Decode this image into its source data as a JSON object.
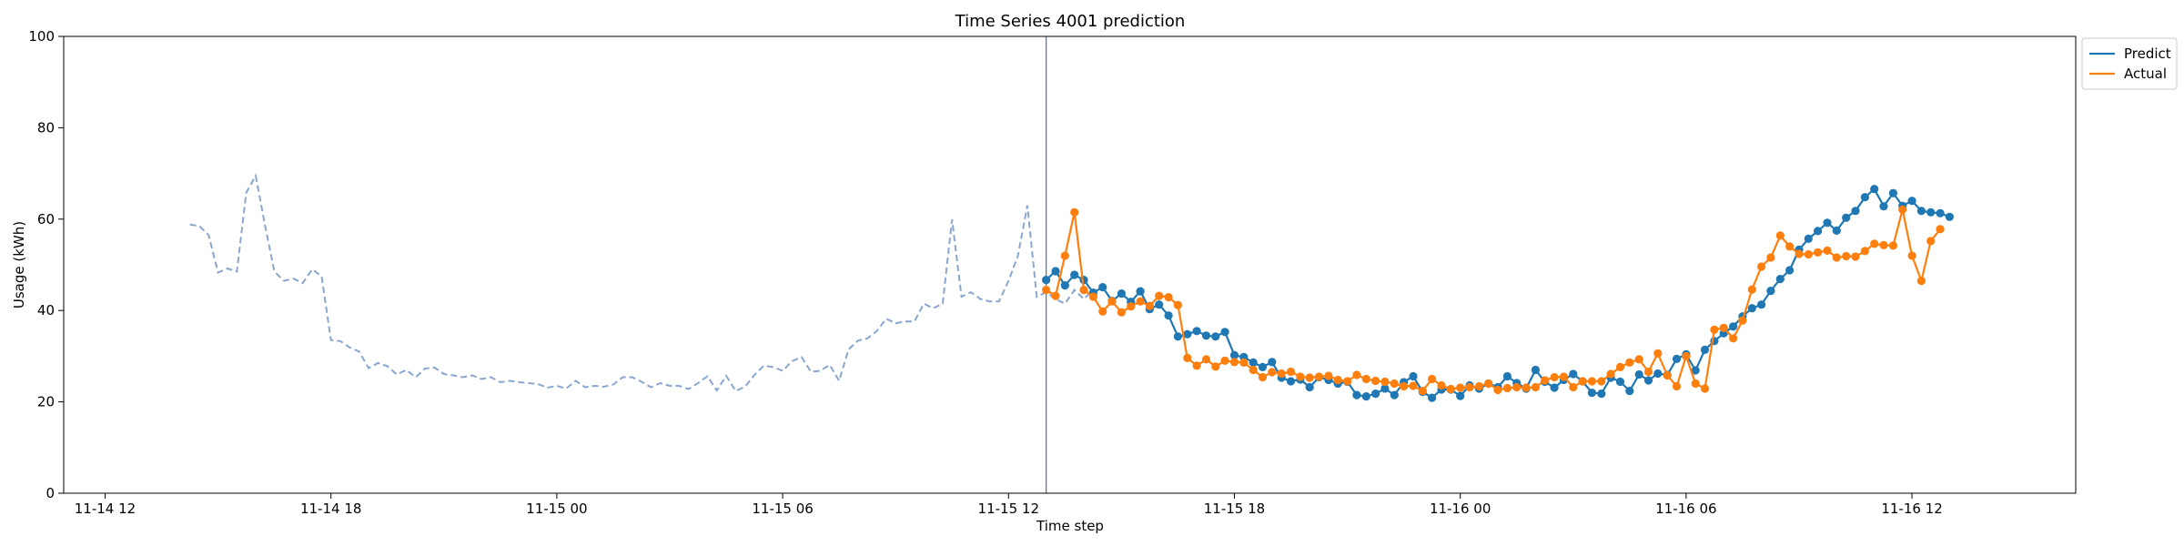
{
  "chart_data": {
    "type": "line",
    "title": "Time Series 4001 prediction",
    "xlabel": "Time step",
    "ylabel": "Usage (kWh)",
    "ylim": [
      0,
      100
    ],
    "yticks": [
      "0",
      "20",
      "40",
      "60",
      "80",
      "100"
    ],
    "xlim": [
      "11-14 10:54",
      "11-16 16:21"
    ],
    "xticks": [
      {
        "at": "11-14 12:00",
        "label": "11-14 12"
      },
      {
        "at": "11-14 18:00",
        "label": "11-14 18"
      },
      {
        "at": "11-15 00:00",
        "label": "11-15 00"
      },
      {
        "at": "11-15 06:00",
        "label": "11-15 06"
      },
      {
        "at": "11-15 12:00",
        "label": "11-15 12"
      },
      {
        "at": "11-15 18:00",
        "label": "11-15 18"
      },
      {
        "at": "11-16 00:00",
        "label": "11-16 00"
      },
      {
        "at": "11-16 06:00",
        "label": "11-16 06"
      },
      {
        "at": "11-16 12:00",
        "label": "11-16 12"
      }
    ],
    "grid": false,
    "legend_position": "outside-top-right",
    "vline": {
      "x": "11-15 13:00",
      "color": "#4c72b0"
    },
    "series": [
      {
        "name": "",
        "style": "dashed",
        "color": "#8aa6cf",
        "markers": false,
        "start": "11-14 14:15",
        "step_minutes": 15,
        "values": [
          58.8,
          58.5,
          56.5,
          48.3,
          49.2,
          48.5,
          65.8,
          69.5,
          58.5,
          48.5,
          46.5,
          47.0,
          46.0,
          49.0,
          47.5,
          33.5,
          33.3,
          31.9,
          31.0,
          27.4,
          28.5,
          27.8,
          26.0,
          27.0,
          25.4,
          27.3,
          27.5,
          26.1,
          25.8,
          25.4,
          25.8,
          25.0,
          25.4,
          24.3,
          24.6,
          24.3,
          24.1,
          23.9,
          23.1,
          23.5,
          22.9,
          24.6,
          23.2,
          23.5,
          23.3,
          23.8,
          25.4,
          25.4,
          24.4,
          23.2,
          24.1,
          23.5,
          23.5,
          22.8,
          24.1,
          25.6,
          22.5,
          25.7,
          22.4,
          23.3,
          25.9,
          27.9,
          27.6,
          26.8,
          28.9,
          29.8,
          26.6,
          26.8,
          28.1,
          24.6,
          31.5,
          33.4,
          33.9,
          35.5,
          38.2,
          37.2,
          37.6,
          37.6,
          41.5,
          40.5,
          41.5,
          59.9,
          43.0,
          44.0,
          42.5,
          42.0,
          42.0,
          46.5,
          52.0,
          63.0,
          43.0,
          44.0,
          42.5,
          41.5,
          44.5,
          42.5,
          44.5
        ]
      },
      {
        "name": "Predict",
        "style": "solid",
        "color": "#1f77b4",
        "markers": true,
        "start": "11-15 13:00",
        "step_minutes": 15,
        "values": [
          46.7,
          48.6,
          45.5,
          47.8,
          46.7,
          43.9,
          45.1,
          42.1,
          43.7,
          41.9,
          44.2,
          40.3,
          41.3,
          38.9,
          34.3,
          34.8,
          35.5,
          34.5,
          34.3,
          35.3,
          30.2,
          29.8,
          28.6,
          27.6,
          28.7,
          25.3,
          24.5,
          24.9,
          23.2,
          25.4,
          24.8,
          24.0,
          24.4,
          21.5,
          21.2,
          21.8,
          22.9,
          21.5,
          24.3,
          25.6,
          22.2,
          20.9,
          22.7,
          22.7,
          21.3,
          23.6,
          22.9,
          24.0,
          23.2,
          25.6,
          24.1,
          22.9,
          27.0,
          24.4,
          23.1,
          24.8,
          26.1,
          24.5,
          22.0,
          21.8,
          25.3,
          24.4,
          22.4,
          26.0,
          24.7,
          26.2,
          25.9,
          29.4,
          30.4,
          26.9,
          31.4,
          33.3,
          35.0,
          36.5,
          38.7,
          40.5,
          41.3,
          44.3,
          46.9,
          48.8,
          53.3,
          55.7,
          57.4,
          59.2,
          57.5,
          60.3,
          61.8,
          64.8,
          66.6,
          62.8,
          65.7,
          62.9,
          64.0,
          61.8,
          61.5,
          61.3,
          60.5
        ]
      },
      {
        "name": "Actual",
        "style": "solid",
        "color": "#ff7f0e",
        "markers": true,
        "start": "11-15 13:00",
        "step_minutes": 15,
        "values": [
          44.5,
          43.2,
          52.0,
          61.5,
          44.5,
          43.0,
          39.8,
          42.0,
          39.6,
          40.9,
          42.0,
          41.0,
          43.2,
          42.9,
          41.2,
          29.6,
          27.9,
          29.3,
          27.7,
          29.0,
          28.7,
          28.6,
          27.0,
          25.4,
          26.5,
          26.2,
          26.6,
          25.5,
          25.3,
          25.5,
          25.7,
          24.8,
          24.5,
          25.9,
          25.0,
          24.6,
          24.4,
          24.0,
          23.4,
          23.5,
          22.4,
          25.0,
          23.6,
          22.8,
          23.1,
          23.2,
          23.4,
          24.0,
          22.6,
          23.0,
          23.2,
          23.1,
          23.2,
          24.7,
          25.4,
          25.5,
          23.2,
          24.5,
          24.5,
          24.5,
          26.1,
          27.6,
          28.6,
          29.3,
          26.6,
          30.6,
          25.8,
          23.4,
          30.0,
          24.0,
          22.9,
          35.8,
          36.2,
          33.9,
          37.8,
          44.6,
          49.6,
          51.6,
          56.4,
          54.0,
          52.4,
          52.3,
          52.7,
          53.1,
          51.6,
          51.9,
          51.8,
          53.0,
          54.6,
          54.3,
          54.2,
          62.1,
          52.0,
          46.5,
          55.2,
          57.8
        ]
      }
    ]
  }
}
